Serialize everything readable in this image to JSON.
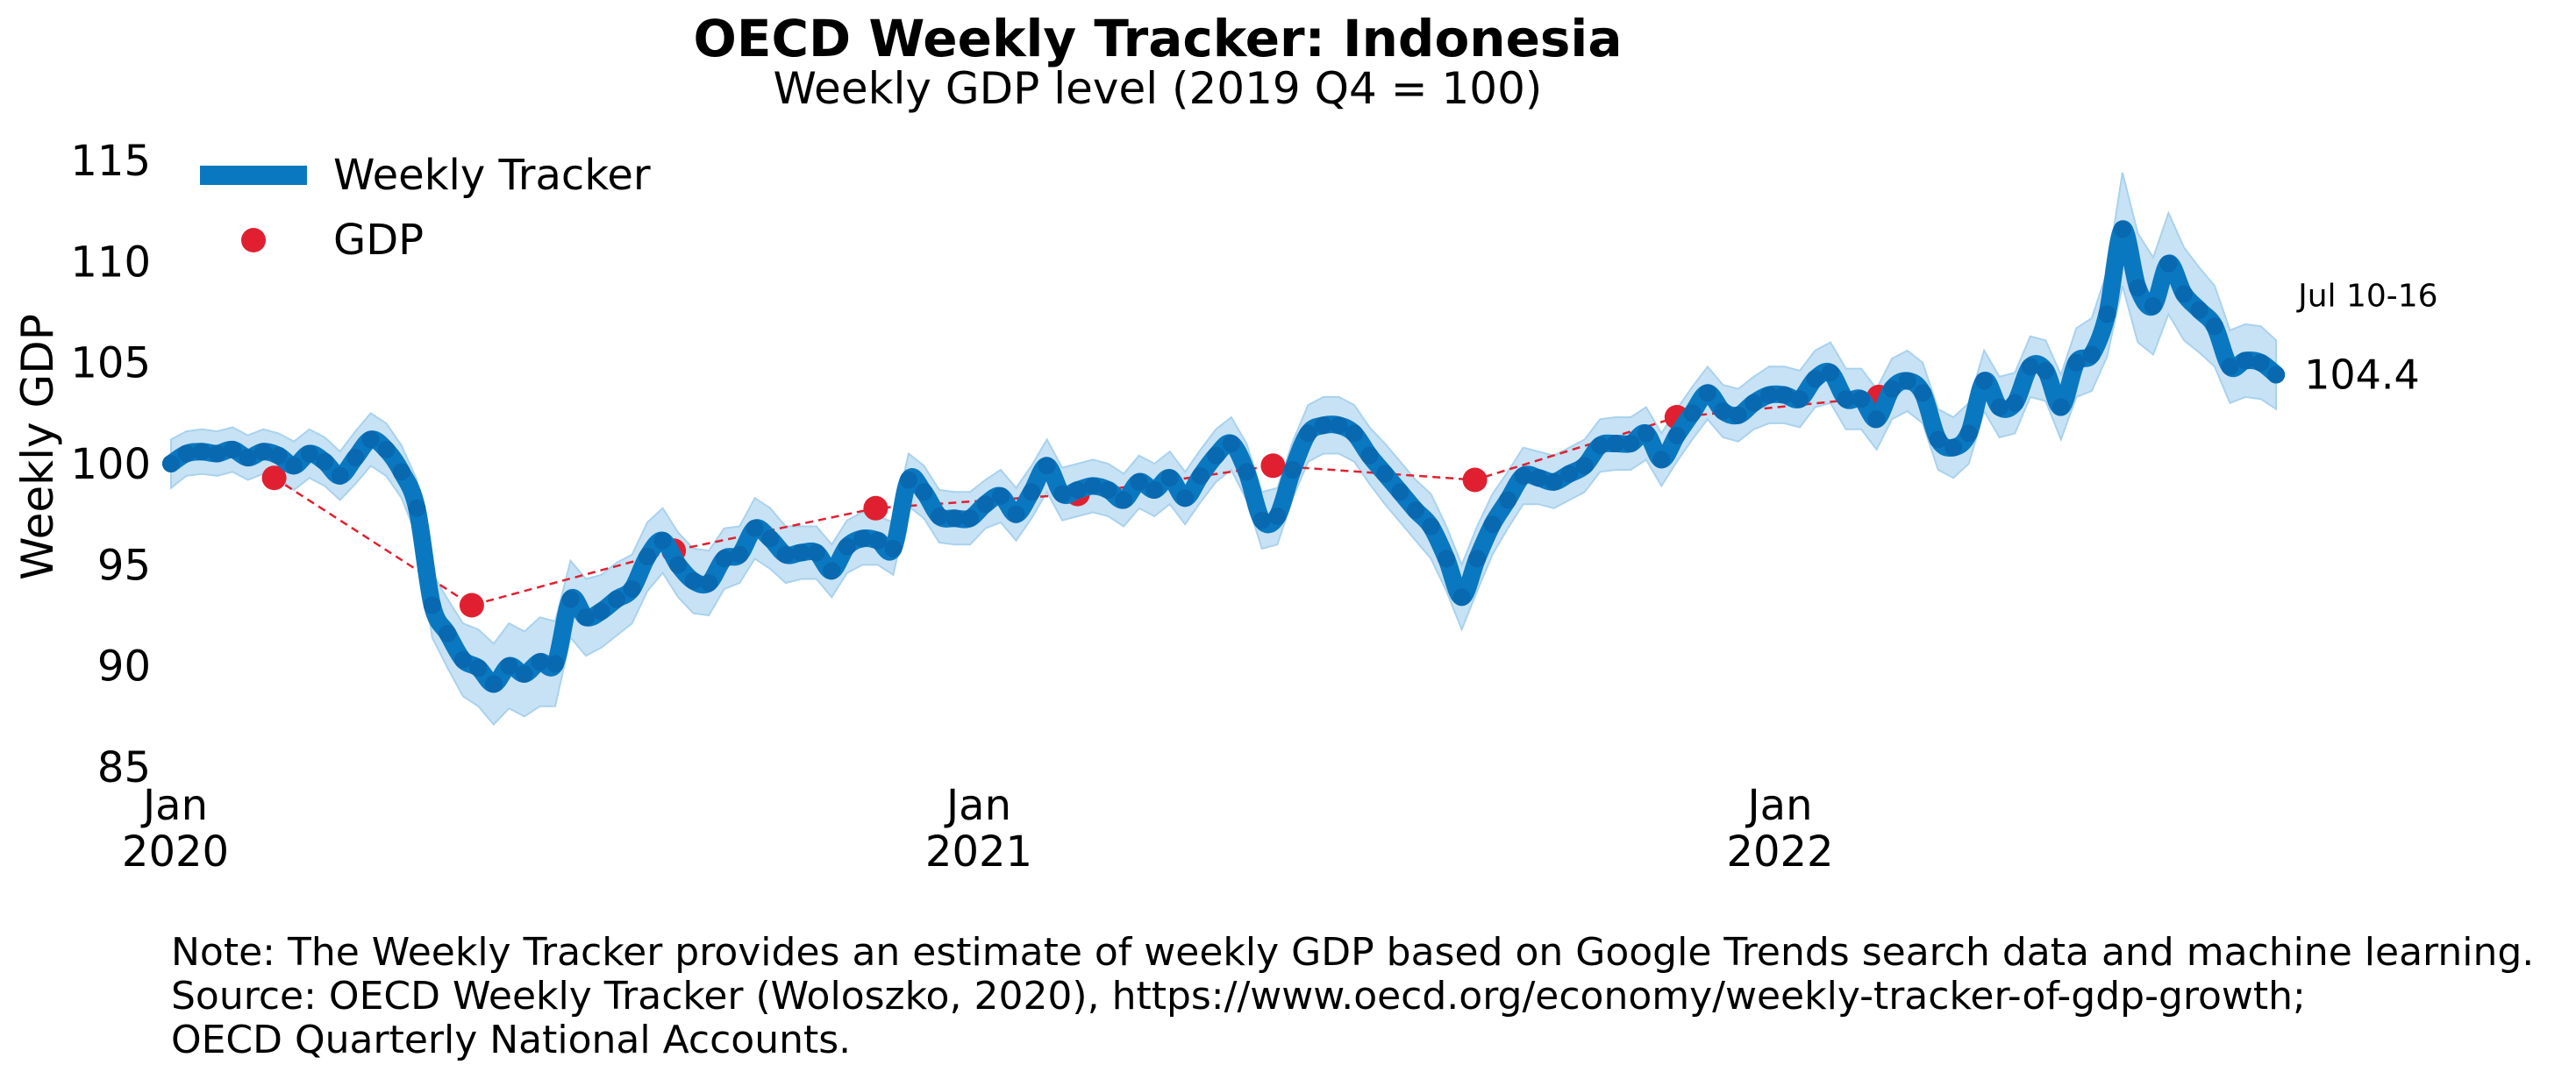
{
  "chart_data": {
    "type": "line",
    "title": "OECD Weekly Tracker: Indonesia",
    "subtitle": "Weekly GDP level (2019 Q4 = 100)",
    "ylabel": "Weekly GDP",
    "xlabel": "",
    "ylim": [
      85,
      116
    ],
    "yticks": [
      85,
      90,
      95,
      100,
      105,
      110,
      115
    ],
    "x_range": [
      "2019-12-30",
      "2022-07-16"
    ],
    "xticks": [
      {
        "date": "2020-01-01",
        "month": "Jan",
        "year": "2020"
      },
      {
        "date": "2021-01-01",
        "month": "Jan",
        "year": "2021"
      },
      {
        "date": "2022-01-01",
        "month": "Jan",
        "year": "2022"
      }
    ],
    "grid": false,
    "legend_position": "top-left",
    "legend": [
      {
        "label": "Weekly Tracker",
        "marker": "thick-line",
        "color": "#0a78c0"
      },
      {
        "label": "GDP",
        "marker": "dot",
        "color": "#e02030"
      }
    ],
    "colors": {
      "tracker": "#0a78c0",
      "tracker_points": "#0868b0",
      "band": "#a9d2ee",
      "gdp": "#e02030"
    },
    "series": [
      {
        "name": "Weekly Tracker",
        "start_date": "2019-12-30",
        "interval_days": 7,
        "values": [
          100.0,
          100.5,
          100.6,
          100.5,
          100.7,
          100.3,
          100.6,
          100.4,
          99.9,
          100.5,
          100.1,
          99.4,
          100.3,
          101.2,
          100.7,
          99.6,
          97.8,
          93.0,
          91.6,
          90.3,
          89.9,
          89.1,
          90.0,
          89.6,
          90.2,
          90.1,
          93.3,
          92.4,
          92.7,
          93.3,
          93.8,
          95.4,
          96.2,
          95.0,
          94.2,
          94.1,
          95.3,
          95.5,
          96.8,
          96.3,
          95.5,
          95.6,
          95.6,
          94.7,
          95.9,
          96.3,
          96.2,
          95.8,
          99.2,
          98.6,
          97.4,
          97.3,
          97.3,
          98.0,
          98.4,
          97.5,
          98.6,
          99.9,
          98.5,
          98.7,
          98.9,
          98.7,
          98.2,
          99.1,
          98.7,
          99.3,
          98.3,
          99.4,
          100.4,
          101.0,
          99.6,
          97.2,
          97.4,
          99.7,
          101.5,
          101.9,
          101.9,
          101.5,
          100.4,
          99.5,
          98.6,
          97.7,
          96.9,
          95.3,
          93.4,
          95.3,
          97.0,
          98.2,
          99.4,
          99.3,
          99.1,
          99.5,
          99.9,
          100.9,
          101.0,
          101.0,
          101.5,
          100.2,
          101.4,
          102.5,
          103.5,
          102.6,
          102.4,
          103.0,
          103.4,
          103.4,
          103.2,
          104.2,
          104.5,
          103.2,
          103.2,
          102.2,
          103.7,
          104.1,
          103.5,
          101.2,
          100.8,
          101.5,
          104.1,
          102.8,
          103.0,
          104.8,
          104.6,
          102.8,
          105.0,
          105.4,
          107.4,
          111.6,
          108.7,
          107.8,
          109.9,
          108.4,
          107.6,
          106.8,
          104.8,
          105.1,
          105.0,
          104.4
        ],
        "uncertainty_band": {
          "lower": [
            98.8,
            99.4,
            99.5,
            99.4,
            99.6,
            99.2,
            99.5,
            99.3,
            98.7,
            99.3,
            98.9,
            98.2,
            99.0,
            99.9,
            99.4,
            98.3,
            96.4,
            91.4,
            89.9,
            88.5,
            88.0,
            87.1,
            87.9,
            87.5,
            88.0,
            88.0,
            91.4,
            90.5,
            90.9,
            91.5,
            92.1,
            93.7,
            94.6,
            93.4,
            92.6,
            92.5,
            93.8,
            94.1,
            95.3,
            94.8,
            94.1,
            94.3,
            94.3,
            93.4,
            94.6,
            95.0,
            95.0,
            94.5,
            97.9,
            97.3,
            96.1,
            96.0,
            96.0,
            96.8,
            97.1,
            96.2,
            97.3,
            98.6,
            97.2,
            97.4,
            97.6,
            97.4,
            96.9,
            97.8,
            97.4,
            98.0,
            97.0,
            98.1,
            99.1,
            99.7,
            98.2,
            95.8,
            96.0,
            98.3,
            100.1,
            100.5,
            100.5,
            100.1,
            99.0,
            98.0,
            97.1,
            96.2,
            95.3,
            93.7,
            91.8,
            93.7,
            95.5,
            96.8,
            98.0,
            98.0,
            97.8,
            98.2,
            98.6,
            99.6,
            99.7,
            99.7,
            100.2,
            98.9,
            100.1,
            101.2,
            102.2,
            101.3,
            101.1,
            101.7,
            102.0,
            102.0,
            101.8,
            102.8,
            103.0,
            101.7,
            101.7,
            100.7,
            102.2,
            102.6,
            102.0,
            99.7,
            99.3,
            100.0,
            102.6,
            101.3,
            101.5,
            103.3,
            103.1,
            101.2,
            103.3,
            103.6,
            105.3,
            108.8,
            106.0,
            105.4,
            107.4,
            106.1,
            105.5,
            104.8,
            103.0,
            103.3,
            103.2,
            102.7
          ],
          "upper": [
            101.2,
            101.6,
            101.7,
            101.6,
            101.8,
            101.4,
            101.7,
            101.5,
            101.1,
            101.7,
            101.3,
            100.6,
            101.6,
            102.5,
            102.0,
            100.9,
            99.2,
            94.6,
            93.3,
            92.1,
            91.8,
            91.1,
            92.1,
            91.7,
            92.4,
            92.2,
            95.2,
            94.3,
            94.5,
            95.1,
            95.5,
            97.1,
            97.8,
            96.6,
            95.8,
            95.7,
            96.8,
            96.9,
            98.3,
            97.8,
            96.9,
            96.9,
            96.9,
            96.0,
            97.2,
            97.6,
            97.4,
            97.1,
            100.5,
            99.9,
            98.7,
            98.6,
            98.6,
            99.2,
            99.7,
            98.8,
            99.9,
            101.2,
            99.8,
            100.0,
            100.2,
            100.0,
            99.5,
            100.4,
            100.0,
            100.6,
            99.6,
            100.7,
            101.7,
            102.3,
            101.0,
            98.6,
            98.8,
            101.1,
            102.9,
            103.3,
            103.3,
            102.9,
            101.8,
            101.0,
            100.1,
            99.2,
            98.5,
            96.9,
            95.0,
            96.9,
            98.5,
            99.6,
            100.8,
            100.6,
            100.4,
            100.8,
            101.2,
            102.2,
            102.3,
            102.3,
            102.8,
            101.5,
            102.7,
            103.8,
            104.8,
            103.9,
            103.7,
            104.3,
            104.8,
            104.8,
            104.6,
            105.6,
            106.0,
            104.7,
            104.7,
            103.7,
            105.2,
            105.6,
            105.0,
            102.7,
            102.3,
            103.0,
            105.6,
            104.3,
            104.5,
            106.3,
            106.1,
            104.4,
            106.7,
            107.2,
            109.5,
            114.4,
            111.4,
            110.2,
            112.4,
            110.7,
            109.7,
            108.8,
            106.6,
            106.9,
            106.8,
            106.1
          ]
        }
      },
      {
        "name": "GDP",
        "points": [
          {
            "x": "2020-02-15",
            "y": 99.3
          },
          {
            "x": "2020-05-15",
            "y": 93.0
          },
          {
            "x": "2020-08-15",
            "y": 95.7
          },
          {
            "x": "2020-11-15",
            "y": 97.8
          },
          {
            "x": "2021-02-15",
            "y": 98.5
          },
          {
            "x": "2021-05-15",
            "y": 99.9
          },
          {
            "x": "2021-08-15",
            "y": 99.2
          },
          {
            "x": "2021-11-15",
            "y": 102.3
          },
          {
            "x": "2022-02-15",
            "y": 103.3
          }
        ]
      }
    ],
    "annotations": [
      {
        "text": "Jul 10-16",
        "anchor": "last-point"
      },
      {
        "text": "104.4",
        "anchor": "last-point"
      }
    ]
  },
  "notes": [
    "Note: The Weekly Tracker provides an estimate of weekly GDP based on Google Trends search data and machine learning.",
    "Source: OECD Weekly Tracker (Woloszko, 2020), https://www.oecd.org/economy/weekly-tracker-of-gdp-growth;",
    "OECD Quarterly National Accounts."
  ]
}
